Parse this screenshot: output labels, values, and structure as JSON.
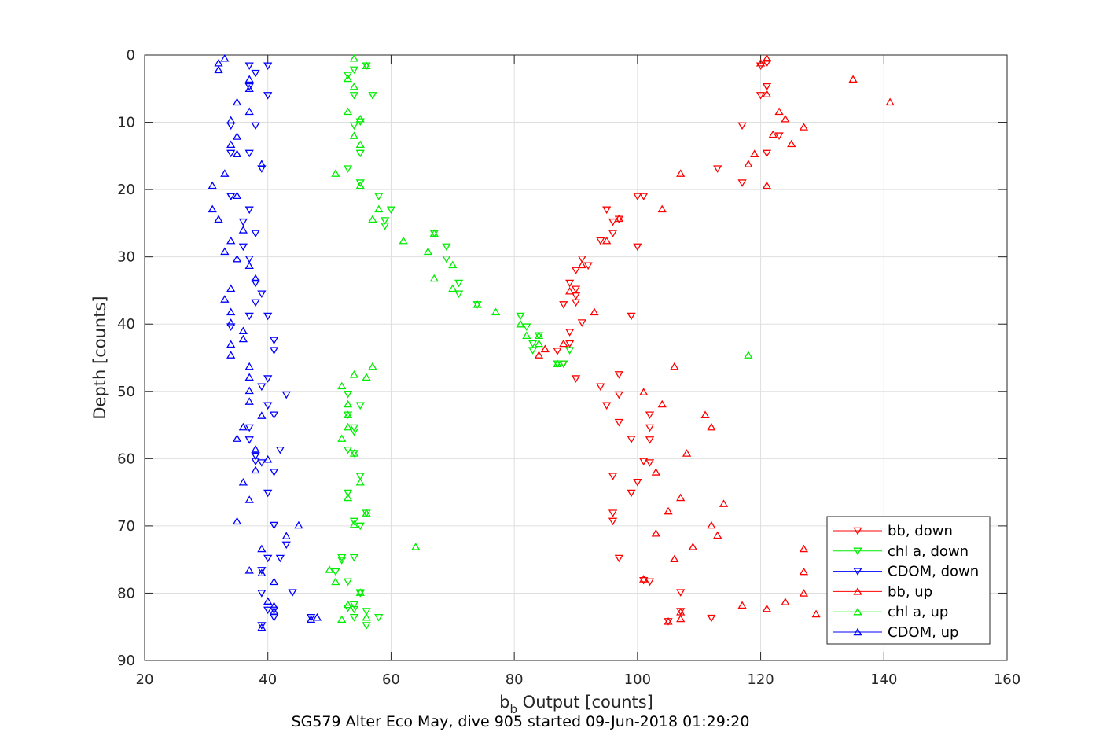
{
  "chart_data": {
    "type": "scatter",
    "xlabel": "b_b Output [counts]",
    "xlabel_main": "b",
    "xlabel_sub": "b",
    "xlabel_rest": " Output [counts]",
    "ylabel": "Depth [counts]",
    "caption": "SG579 Alter Eco May, dive 905 started 09-Jun-2018 01:29:20",
    "xlim": [
      20,
      160
    ],
    "ylim": [
      0,
      90
    ],
    "y_reversed": true,
    "xticks": [
      "20",
      "40",
      "60",
      "80",
      "100",
      "120",
      "140",
      "160"
    ],
    "yticks": [
      "0",
      "10",
      "20",
      "30",
      "40",
      "50",
      "60",
      "70",
      "80",
      "90"
    ],
    "grid": true,
    "legend_position": "bottom-right",
    "series": [
      {
        "name": "bb, down",
        "color": "#ff0000",
        "marker": "triangle-down",
        "x": [
          121,
          120,
          121,
          120,
          117,
          123,
          113,
          121,
          117,
          100,
          101,
          95,
          97,
          96,
          96,
          94,
          100,
          91,
          92,
          90,
          89,
          90,
          90,
          88,
          99,
          91,
          89,
          90,
          89,
          87,
          88,
          97,
          90,
          97,
          95,
          97,
          94,
          102,
          102,
          102,
          99,
          102,
          101,
          96,
          100,
          99,
          96,
          96,
          97,
          101,
          102,
          107,
          105,
          112,
          107
        ],
        "y": [
          1.2,
          1.6,
          4.7,
          6.0,
          10.5,
          12.0,
          16.9,
          14.6,
          19.0,
          21.0,
          21.0,
          23.0,
          24.4,
          26.5,
          24.8,
          27.6,
          28.5,
          30.3,
          31.3,
          32.0,
          33.9,
          34.8,
          35.8,
          37.1,
          38.8,
          39.8,
          41.2,
          36.8,
          42.9,
          44.0,
          45.9,
          47.5,
          48.1,
          50.5,
          52.1,
          54.6,
          49.3,
          53.5,
          55.4,
          57.2,
          57.1,
          60.6,
          60.4,
          62.6,
          63.5,
          65.1,
          68.1,
          69.3,
          74.8,
          78.1,
          78.3,
          79.9,
          84.2,
          83.7,
          82.7
        ]
      },
      {
        "name": "chl a, down",
        "color": "#00ee00",
        "marker": "triangle-down",
        "x": [
          56,
          54,
          53,
          57,
          54,
          55,
          54,
          55,
          53,
          55,
          58,
          59,
          60,
          59,
          67,
          69,
          69,
          71,
          71,
          74,
          81,
          84,
          82,
          83,
          83,
          88,
          87,
          89,
          53,
          55,
          53,
          54,
          54,
          53,
          54,
          55,
          53,
          56,
          54,
          55,
          54,
          52,
          52,
          51,
          53,
          53,
          54,
          56,
          55,
          54,
          55,
          54,
          58,
          56
        ],
        "y": [
          1.6,
          2.2,
          3.0,
          6.0,
          6.0,
          9.9,
          10.5,
          14.6,
          16.9,
          19.0,
          21.0,
          24.6,
          23.0,
          25.4,
          26.5,
          28.5,
          30.3,
          33.9,
          35.5,
          37.1,
          38.8,
          41.7,
          40.4,
          43.9,
          42.9,
          45.9,
          45.9,
          43.9,
          50.4,
          52.1,
          53.5,
          55.4,
          56.0,
          58.7,
          59.2,
          62.6,
          65.1,
          68.1,
          69.3,
          70.0,
          74.7,
          74.7,
          75.1,
          76.8,
          78.3,
          82.2,
          82.4,
          84.8,
          79.9,
          81.7,
          80.0,
          83.6,
          83.6,
          82.7
        ]
      },
      {
        "name": "CDOM, down",
        "color": "#0000ff",
        "marker": "triangle-down",
        "x": [
          37,
          40,
          38,
          37,
          40,
          34,
          38,
          37,
          34,
          39,
          34,
          37,
          36,
          38,
          36,
          37,
          38,
          39,
          38,
          37,
          40,
          34,
          34,
          41,
          41,
          40,
          39,
          43,
          40,
          41,
          37,
          42,
          41,
          40,
          38,
          37,
          38,
          39,
          41,
          43,
          42,
          40,
          39,
          39,
          44,
          40,
          41,
          47,
          39,
          41
        ],
        "y": [
          1.6,
          1.6,
          2.7,
          4.7,
          6.0,
          10.5,
          10.5,
          14.6,
          14.6,
          16.9,
          21.0,
          23.0,
          24.8,
          26.5,
          28.5,
          30.3,
          33.9,
          35.5,
          36.8,
          38.8,
          38.8,
          40.4,
          21.0,
          42.4,
          43.9,
          48.1,
          49.3,
          50.5,
          52.1,
          53.5,
          55.4,
          58.7,
          62.0,
          65.1,
          60.4,
          57.2,
          59.6,
          60.6,
          69.9,
          72.8,
          74.8,
          74.8,
          76.6,
          80.0,
          79.9,
          82.5,
          82.5,
          83.6,
          84.8,
          83.6
        ]
      },
      {
        "name": "bb, up",
        "color": "#ff0000",
        "marker": "triangle-up",
        "x": [
          121,
          135,
          141,
          120,
          121,
          123,
          127,
          124,
          125,
          122,
          119,
          118,
          121,
          107,
          104,
          97,
          95,
          91,
          89,
          93,
          88,
          85,
          84,
          106,
          101,
          104,
          111,
          112,
          108,
          103,
          107,
          105,
          114,
          112,
          103,
          109,
          106,
          113,
          101,
          107,
          117,
          121,
          124,
          127,
          127,
          127,
          129,
          105,
          107
        ],
        "y": [
          0.5,
          3.6,
          7.0,
          1.2,
          5.8,
          8.4,
          10.7,
          9.5,
          13.2,
          11.8,
          14.7,
          16.2,
          19.4,
          17.6,
          22.9,
          24.3,
          27.6,
          31.2,
          35.1,
          38.2,
          42.9,
          43.7,
          44.6,
          46.3,
          50.1,
          51.9,
          53.5,
          55.3,
          59.2,
          62.0,
          65.8,
          67.8,
          66.7,
          69.9,
          71.1,
          73.1,
          74.9,
          71.4,
          77.9,
          82.8,
          81.8,
          82.3,
          81.3,
          80.0,
          76.8,
          73.4,
          83.1,
          84.2,
          83.8
        ]
      },
      {
        "name": "chl a, up",
        "color": "#00ee00",
        "marker": "triangle-up",
        "x": [
          54,
          56,
          53,
          54,
          53,
          55,
          54,
          55,
          51,
          55,
          58,
          57,
          62,
          66,
          67,
          67,
          70,
          70,
          74,
          77,
          81,
          82,
          84,
          84,
          87,
          118,
          57,
          56,
          54,
          53,
          52,
          53,
          52,
          53,
          54,
          55,
          56,
          64,
          53,
          54,
          50,
          51,
          53,
          55,
          52,
          56
        ],
        "y": [
          0.5,
          1.6,
          3.5,
          4.7,
          8.4,
          9.5,
          12.0,
          13.3,
          17.6,
          19.4,
          22.9,
          24.4,
          27.6,
          29.2,
          26.5,
          33.2,
          31.2,
          34.7,
          37.1,
          38.2,
          40.0,
          41.7,
          41.7,
          42.9,
          45.9,
          44.6,
          46.3,
          47.9,
          47.5,
          51.9,
          49.2,
          53.5,
          57.0,
          55.3,
          59.2,
          63.5,
          68.1,
          73.1,
          65.8,
          69.8,
          76.5,
          78.3,
          81.7,
          79.9,
          83.9,
          83.6
        ]
      },
      {
        "name": "CDOM, up",
        "color": "#0000ff",
        "marker": "triangle-up",
        "x": [
          33,
          32,
          32,
          37,
          37,
          35,
          37,
          34,
          35,
          34,
          35,
          39,
          33,
          31,
          35,
          31,
          32,
          36,
          34,
          33,
          35,
          37,
          38,
          34,
          33,
          34,
          34,
          36,
          36,
          34,
          34,
          37,
          37,
          37,
          37,
          39,
          36,
          35,
          38,
          40,
          38,
          36,
          37,
          35,
          45,
          43,
          39,
          39,
          37,
          41,
          40,
          41,
          41,
          48,
          47,
          39
        ],
        "y": [
          0.5,
          1.2,
          2.2,
          3.6,
          5.0,
          7.0,
          8.4,
          9.7,
          12.1,
          13.3,
          14.7,
          16.2,
          17.6,
          19.4,
          20.9,
          22.9,
          24.4,
          26.0,
          27.6,
          29.2,
          30.3,
          31.3,
          33.2,
          34.7,
          36.3,
          38.2,
          39.8,
          41.0,
          42.2,
          43.0,
          44.6,
          46.3,
          47.9,
          49.9,
          51.5,
          53.6,
          55.3,
          57.0,
          58.6,
          60.1,
          61.7,
          63.5,
          66.1,
          69.3,
          69.9,
          71.5,
          73.4,
          77.0,
          76.6,
          78.3,
          81.2,
          81.9,
          82.7,
          83.6,
          83.9,
          85.1
        ]
      }
    ]
  }
}
